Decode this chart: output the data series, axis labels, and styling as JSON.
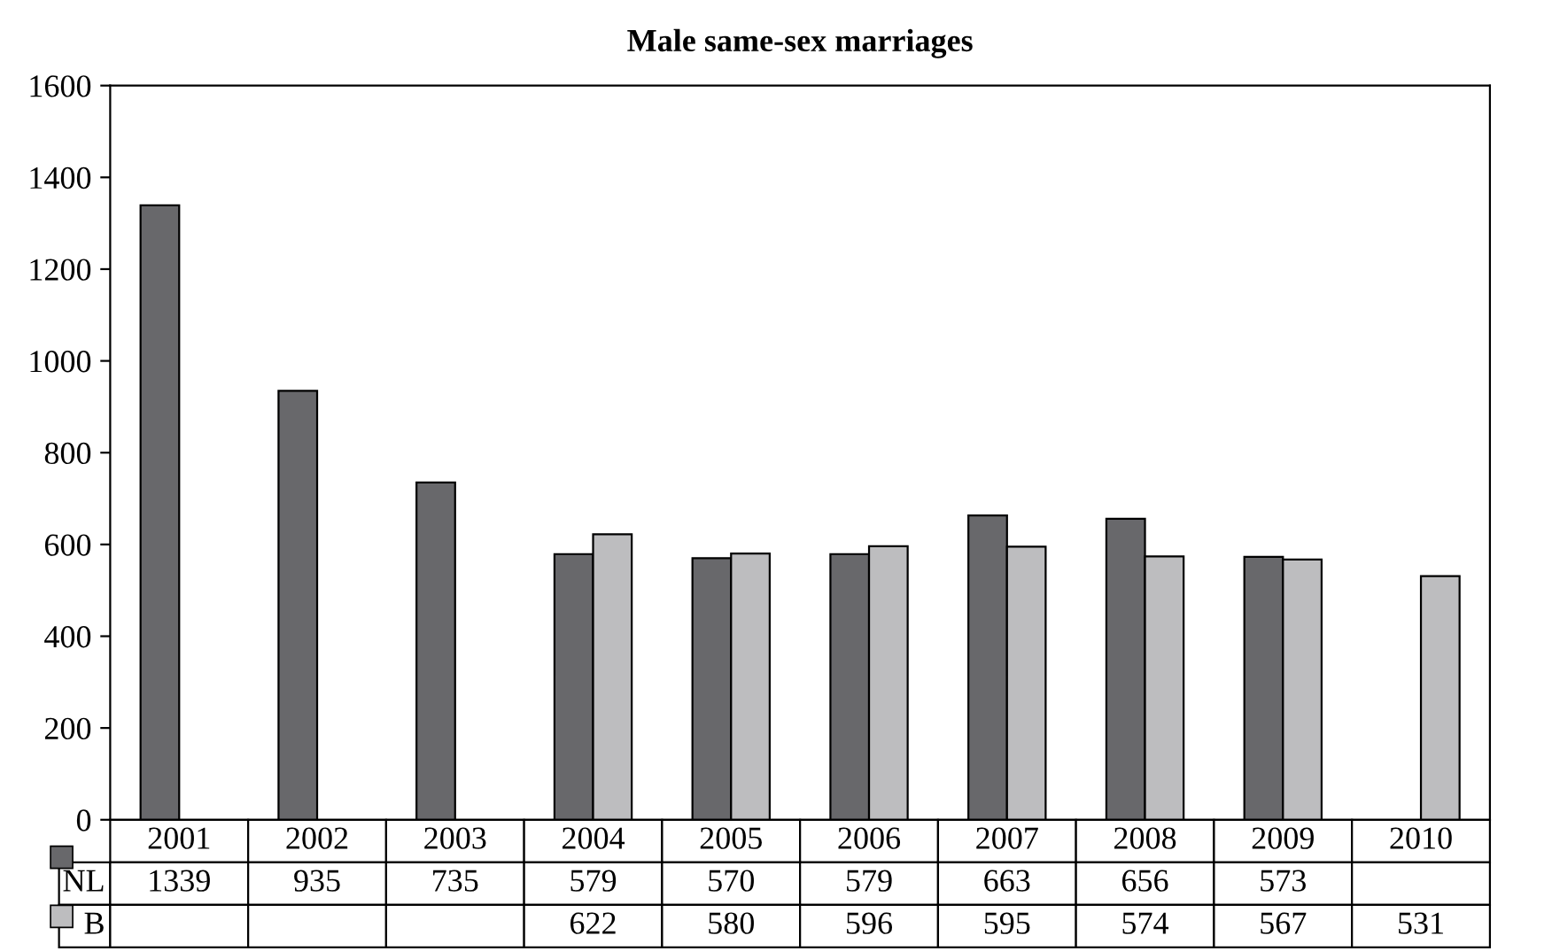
{
  "chart_data": {
    "type": "bar",
    "title": "Male same-sex marriages",
    "categories": [
      "2001",
      "2002",
      "2003",
      "2004",
      "2005",
      "2006",
      "2007",
      "2008",
      "2009",
      "2010"
    ],
    "series": [
      {
        "name": "NL",
        "color": "#68686b",
        "values": [
          1339,
          935,
          735,
          579,
          570,
          579,
          663,
          656,
          573,
          null
        ]
      },
      {
        "name": "B",
        "color": "#bdbdbf",
        "values": [
          null,
          null,
          null,
          622,
          580,
          596,
          595,
          574,
          567,
          531
        ]
      }
    ],
    "ylim": [
      0,
      1600
    ],
    "yticks": [
      0,
      200,
      400,
      600,
      800,
      1000,
      1200,
      1400,
      1600
    ],
    "data_labels": true,
    "legend": "bottom",
    "grid": false
  }
}
